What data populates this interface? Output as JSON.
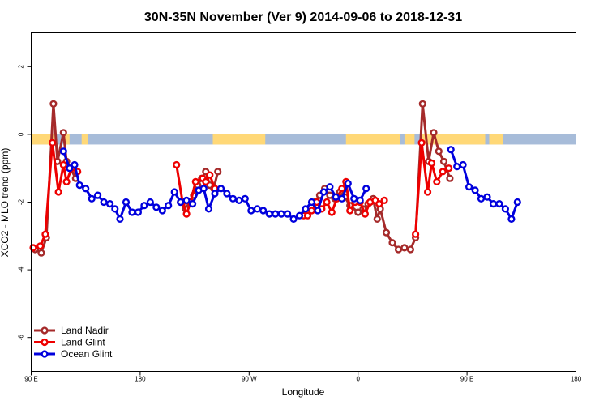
{
  "chart_data": {
    "type": "line",
    "title": "30N-35N November (Ver 9)   2014-09-06 to 2018-12-31",
    "xlabel": "Longitude",
    "ylabel": "XCO2 - MLO trend (ppm)",
    "xlim": [
      -90,
      180
    ],
    "ylim": [
      -7,
      3
    ],
    "x_ticks": [
      {
        "value": -90,
        "label": "90 E"
      },
      {
        "value": -36,
        "label": "180"
      },
      {
        "value": 18,
        "label": "90 W"
      },
      {
        "value": 72,
        "label": "0"
      },
      {
        "value": 126,
        "label": "90 E"
      },
      {
        "value": 180,
        "label": "180"
      }
    ],
    "y_ticks": [
      2,
      0,
      -2,
      -4,
      -6
    ],
    "legend_position": "bottom-left",
    "band": {
      "y_range": [
        -0.3,
        0.0
      ],
      "base_color": "#a7bcd9",
      "highlight_color": "#ffd877",
      "highlight_x_ranges": [
        [
          -90,
          -78
        ],
        [
          -74,
          -71
        ],
        [
          -65,
          -62
        ],
        [
          0,
          26
        ],
        [
          66,
          93
        ],
        [
          95,
          100
        ],
        [
          103,
          135
        ],
        [
          137,
          144
        ]
      ]
    },
    "series": [
      {
        "name": "Land Nadir",
        "color": "#a52a2a",
        "points": [
          [
            -88,
            -3.4
          ],
          [
            -85,
            -3.5
          ],
          [
            -82.5,
            -3.05
          ],
          [
            -79,
            0.9
          ],
          [
            -77,
            -0.8
          ],
          [
            -74,
            0.05
          ],
          [
            -72.5,
            -0.8
          ],
          [
            -70.5,
            -1
          ],
          [
            -68,
            -1.3
          ],
          [
            83,
            -2.2
          ],
          [
            86,
            -2.9
          ],
          [
            89,
            -3.2
          ],
          [
            92,
            -3.4
          ],
          [
            95,
            -3.35
          ],
          [
            98,
            -3.4
          ],
          [
            100.5,
            -3.05
          ],
          [
            104,
            0.9
          ],
          [
            107,
            -0.8
          ],
          [
            109.5,
            0.05
          ],
          [
            112,
            -0.5
          ],
          [
            114.5,
            -0.8
          ],
          [
            117.5,
            -1.3
          ],
          [
            -16,
            -2.0
          ],
          [
            -13.5,
            -2.2
          ],
          [
            -11.5,
            -2.0
          ],
          [
            -9.5,
            -1.8
          ],
          [
            -7.5,
            -1.5
          ],
          [
            -5.5,
            -1.3
          ],
          [
            -3.5,
            -1.1
          ],
          [
            -1.5,
            -1.5
          ],
          [
            0.5,
            -1.6
          ],
          [
            2.5,
            -1.1
          ],
          [
            72,
            -2.3
          ],
          [
            74.5,
            -2.2
          ],
          [
            77,
            -2.05
          ],
          [
            79.5,
            -1.9
          ],
          [
            81.5,
            -2.5
          ],
          [
            50.5,
            -2.0
          ],
          [
            53,
            -1.8
          ],
          [
            55.5,
            -1.6
          ],
          [
            58,
            -1.8
          ],
          [
            60.5,
            -1.9
          ],
          [
            63,
            -1.7
          ],
          [
            65.5,
            -1.85
          ],
          [
            68,
            -2.1
          ]
        ]
      },
      {
        "name": "Land Glint",
        "color": "#ee0000",
        "points": [
          [
            -89,
            -3.35
          ],
          [
            -85.5,
            -3.3
          ],
          [
            -83,
            -2.95
          ],
          [
            -79.5,
            -0.25
          ],
          [
            -76.5,
            -1.7
          ],
          [
            -74,
            -0.9
          ],
          [
            -72.5,
            -1.4
          ],
          [
            -70,
            -1
          ],
          [
            -67,
            -1.1
          ],
          [
            100.5,
            -2.95
          ],
          [
            103.5,
            -0.25
          ],
          [
            106.5,
            -1.7
          ],
          [
            108.5,
            -0.85
          ],
          [
            111,
            -1.4
          ],
          [
            114,
            -1.1
          ],
          [
            117,
            -1.0
          ],
          [
            -18,
            -0.9
          ],
          [
            -15,
            -2.0
          ],
          [
            -13,
            -2.35
          ],
          [
            -11,
            -2.0
          ],
          [
            -8.5,
            -1.4
          ],
          [
            -5,
            -1.3
          ],
          [
            -3.5,
            -1.4
          ],
          [
            -1.5,
            -1.2
          ],
          [
            1,
            -1.6
          ],
          [
            45,
            -2.4
          ],
          [
            47,
            -2.4
          ],
          [
            49,
            -2.25
          ],
          [
            51.5,
            -2.0
          ],
          [
            54,
            -2.2
          ],
          [
            56.5,
            -2.0
          ],
          [
            59,
            -2.3
          ],
          [
            61.5,
            -1.9
          ],
          [
            64,
            -1.6
          ],
          [
            66,
            -1.4
          ],
          [
            68,
            -2.25
          ],
          [
            70.5,
            -2.0
          ],
          [
            73,
            -2.0
          ],
          [
            75.5,
            -2.35
          ],
          [
            78,
            -2.0
          ],
          [
            80.5,
            -1.95
          ],
          [
            82.5,
            -2.05
          ],
          [
            85,
            -1.95
          ]
        ]
      },
      {
        "name": "Ocean Glint",
        "color": "#0000dd",
        "points": [
          [
            -74,
            -0.5
          ],
          [
            -71,
            -1.0
          ],
          [
            -68.5,
            -0.9
          ],
          [
            -66,
            -1.5
          ],
          [
            -63,
            -1.6
          ],
          [
            -60,
            -1.9
          ],
          [
            -57,
            -1.8
          ],
          [
            -54,
            -2.0
          ],
          [
            -51,
            -2.05
          ],
          [
            -48.5,
            -2.2
          ],
          [
            -46,
            -2.5
          ],
          [
            -43,
            -2.0
          ],
          [
            -40,
            -2.3
          ],
          [
            -37,
            -2.3
          ],
          [
            -34,
            -2.1
          ],
          [
            -31,
            -2.0
          ],
          [
            -28,
            -2.15
          ],
          [
            -25,
            -2.25
          ],
          [
            -22,
            -2.1
          ],
          [
            -19,
            -1.7
          ],
          [
            -16,
            -2.0
          ],
          [
            -13,
            -1.95
          ],
          [
            -10,
            -2.05
          ],
          [
            -7,
            -1.65
          ],
          [
            -4.5,
            -1.6
          ],
          [
            -2,
            -2.2
          ],
          [
            1,
            -1.75
          ],
          [
            4,
            -1.6
          ],
          [
            7,
            -1.75
          ],
          [
            10,
            -1.9
          ],
          [
            13,
            -1.95
          ],
          [
            16,
            -1.9
          ],
          [
            19,
            -2.25
          ],
          [
            22,
            -2.2
          ],
          [
            25,
            -2.25
          ],
          [
            28,
            -2.35
          ],
          [
            31,
            -2.35
          ],
          [
            34,
            -2.35
          ],
          [
            37,
            -2.35
          ],
          [
            40,
            -2.5
          ],
          [
            43,
            -2.4
          ],
          [
            46,
            -2.2
          ],
          [
            49,
            -2.0
          ],
          [
            52,
            -2.25
          ],
          [
            55,
            -1.7
          ],
          [
            58,
            -1.55
          ],
          [
            61,
            -1.85
          ],
          [
            64,
            -1.9
          ],
          [
            67,
            -1.45
          ],
          [
            70,
            -1.9
          ],
          [
            73,
            -1.95
          ],
          [
            76,
            -1.6
          ],
          [
            118,
            -0.45
          ],
          [
            121,
            -0.95
          ],
          [
            124,
            -0.9
          ],
          [
            127,
            -1.55
          ],
          [
            130,
            -1.65
          ],
          [
            133,
            -1.9
          ],
          [
            136,
            -1.85
          ],
          [
            139,
            -2.05
          ],
          [
            142,
            -2.05
          ],
          [
            145,
            -2.2
          ],
          [
            148,
            -2.5
          ],
          [
            151,
            -2.0
          ]
        ]
      }
    ]
  }
}
